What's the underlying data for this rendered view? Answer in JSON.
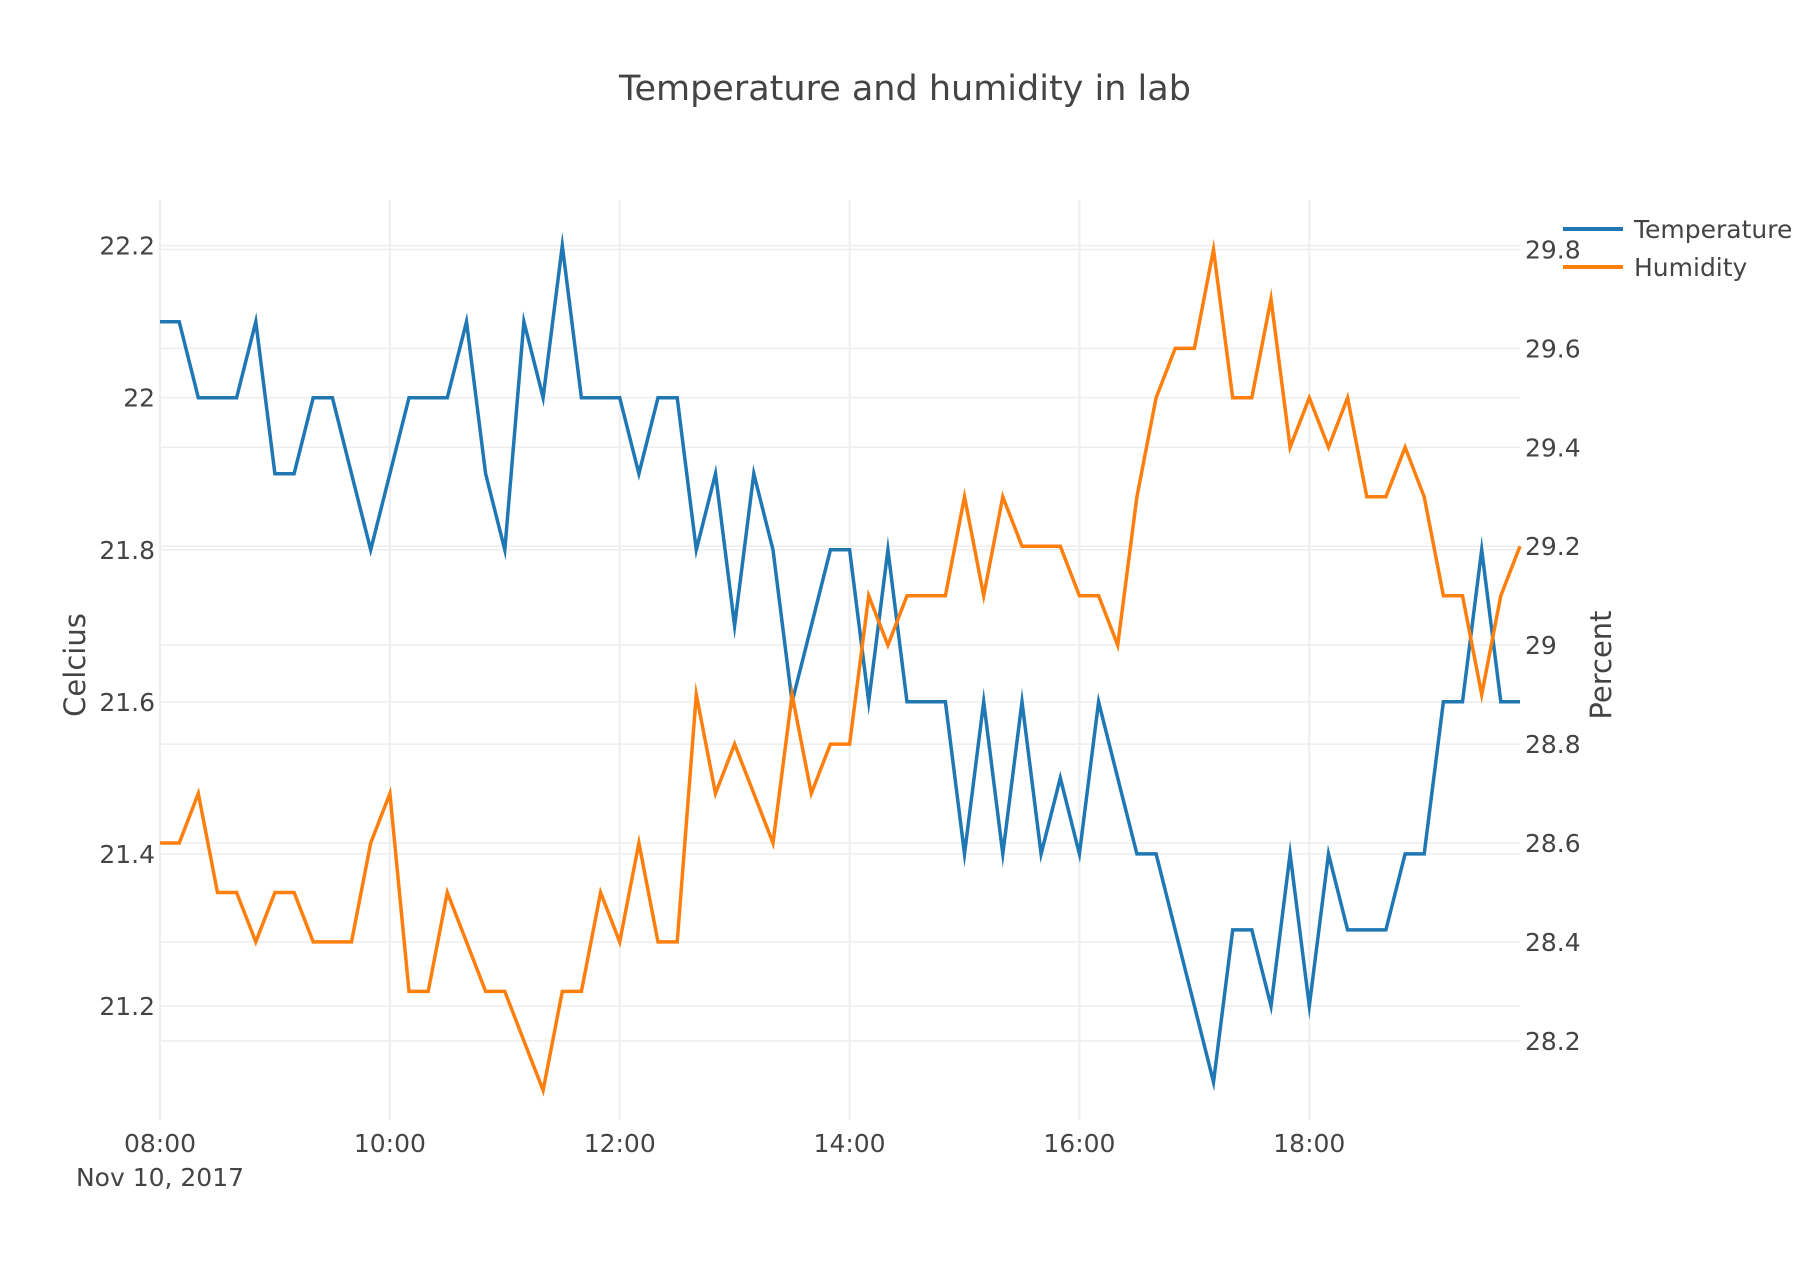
{
  "colors": {
    "temperature": "#1f77b4",
    "humidity": "#ff7f0e",
    "grid": "#eeeeee",
    "text": "#444444"
  },
  "chart_data": {
    "type": "line",
    "title": "Temperature and humidity in lab",
    "xlabel": "",
    "x_date_label": "Nov 10, 2017",
    "x_ticks": [
      "08:00",
      "10:00",
      "12:00",
      "14:00",
      "16:00",
      "18:00"
    ],
    "x_range": [
      "2017-11-10 08:00",
      "2017-11-10 19:50"
    ],
    "y_left": {
      "label": "Celcius",
      "ticks": [
        "21.2",
        "21.4",
        "21.6",
        "21.8",
        "22",
        "22.2"
      ],
      "range": [
        21.05,
        22.26
      ]
    },
    "y_right": {
      "label": "Percent",
      "ticks": [
        "28.2",
        "28.4",
        "28.6",
        "28.8",
        "29",
        "29.2",
        "29.4",
        "29.6",
        "29.8"
      ],
      "range": [
        28.04,
        29.9
      ]
    },
    "legend": {
      "position": "top-right"
    },
    "grid": true,
    "x": [
      "08:00",
      "08:10",
      "08:20",
      "08:30",
      "08:40",
      "08:50",
      "09:00",
      "09:10",
      "09:20",
      "09:30",
      "09:40",
      "09:50",
      "10:00",
      "10:10",
      "10:20",
      "10:30",
      "10:40",
      "10:50",
      "11:00",
      "11:10",
      "11:20",
      "11:30",
      "11:40",
      "11:50",
      "12:00",
      "12:10",
      "12:20",
      "12:30",
      "12:40",
      "12:50",
      "13:00",
      "13:10",
      "13:20",
      "13:30",
      "13:40",
      "13:50",
      "14:00",
      "14:10",
      "14:20",
      "14:30",
      "14:40",
      "14:50",
      "15:00",
      "15:10",
      "15:20",
      "15:30",
      "15:40",
      "15:50",
      "16:00",
      "16:10",
      "16:20",
      "16:30",
      "16:40",
      "16:50",
      "17:00",
      "17:10",
      "17:20",
      "17:30",
      "17:40",
      "17:50",
      "18:00",
      "18:10",
      "18:20",
      "18:30",
      "18:40",
      "18:50",
      "19:00",
      "19:10",
      "19:20",
      "19:30",
      "19:40",
      "19:50"
    ],
    "series": [
      {
        "name": "Temperature",
        "axis": "left",
        "values": [
          22.1,
          22.1,
          22.0,
          22.0,
          22.0,
          22.1,
          21.9,
          21.9,
          22.0,
          22.0,
          21.9,
          21.8,
          21.9,
          22.0,
          22.0,
          22.0,
          22.1,
          21.9,
          21.8,
          22.1,
          22.0,
          22.2,
          22.0,
          22.0,
          22.0,
          21.9,
          22.0,
          22.0,
          21.8,
          21.9,
          21.7,
          21.9,
          21.8,
          21.6,
          21.7,
          21.8,
          21.8,
          21.6,
          21.8,
          21.6,
          21.6,
          21.6,
          21.4,
          21.6,
          21.4,
          21.6,
          21.4,
          21.5,
          21.4,
          21.6,
          21.5,
          21.4,
          21.4,
          21.3,
          21.2,
          21.1,
          21.3,
          21.3,
          21.2,
          21.4,
          21.2,
          21.4,
          21.3,
          21.3,
          21.3,
          21.4,
          21.4,
          21.6,
          21.6,
          21.8,
          21.6,
          21.6
        ]
      },
      {
        "name": "Humidity",
        "axis": "right",
        "values": [
          28.6,
          28.6,
          28.7,
          28.5,
          28.5,
          28.4,
          28.5,
          28.5,
          28.4,
          28.4,
          28.4,
          28.6,
          28.7,
          28.3,
          28.3,
          28.5,
          28.4,
          28.3,
          28.3,
          28.2,
          28.1,
          28.3,
          28.3,
          28.5,
          28.4,
          28.6,
          28.4,
          28.4,
          28.9,
          28.7,
          28.8,
          28.7,
          28.6,
          28.9,
          28.7,
          28.8,
          28.8,
          29.1,
          29.0,
          29.1,
          29.1,
          29.1,
          29.3,
          29.1,
          29.3,
          29.2,
          29.2,
          29.2,
          29.1,
          29.1,
          29.0,
          29.3,
          29.5,
          29.6,
          29.6,
          29.8,
          29.5,
          29.5,
          29.7,
          29.4,
          29.5,
          29.4,
          29.5,
          29.3,
          29.3,
          29.4,
          29.3,
          29.1,
          29.1,
          28.9,
          29.1,
          29.2
        ]
      }
    ]
  }
}
